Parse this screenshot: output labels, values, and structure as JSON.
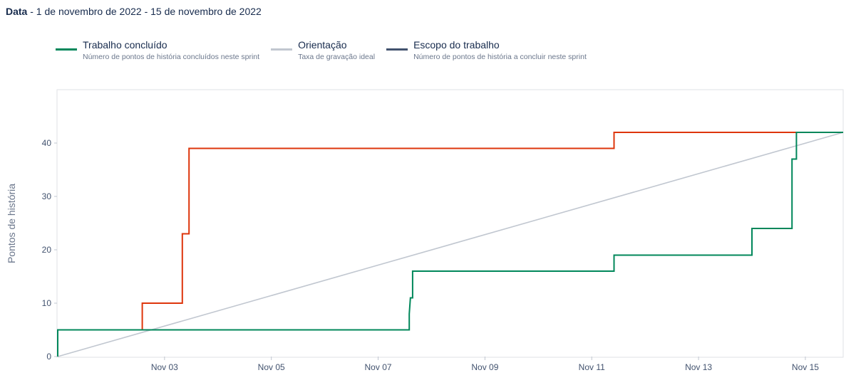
{
  "header": {
    "date_label": "Data",
    "date_range": " - 1 de novembro de 2022 - 15 de novembro de 2022"
  },
  "legend": [
    {
      "title": "Trabalho concluído",
      "description": "Número de pontos de história concluídos neste sprint",
      "color": "#00875a"
    },
    {
      "title": "Orientação",
      "description": "Taxa de gravação ideal",
      "color": "#c1c7d0"
    },
    {
      "title": "Escopo do trabalho",
      "description": "Número de pontos de história a concluir neste sprint",
      "color": "#42526e"
    }
  ],
  "chart_data": {
    "type": "line",
    "ylabel": "Pontos de história",
    "xlabel": "",
    "x_ticks": [
      "Nov 03",
      "Nov 05",
      "Nov 07",
      "Nov 09",
      "Nov 11",
      "Nov 13",
      "Nov 15"
    ],
    "y_ticks": [
      0,
      10,
      20,
      30,
      40
    ],
    "ylim": [
      0,
      50
    ],
    "grid": false,
    "series": [
      {
        "name": "Escopo do trabalho",
        "color": "#de350b",
        "step": true,
        "points": [
          [
            "2022-11-01 00:00",
            5
          ],
          [
            "2022-11-02 14:00",
            5
          ],
          [
            "2022-11-02 14:00",
            10
          ],
          [
            "2022-11-03 08:00",
            10
          ],
          [
            "2022-11-03 08:00",
            23
          ],
          [
            "2022-11-03 11:00",
            23
          ],
          [
            "2022-11-03 11:00",
            39
          ],
          [
            "2022-11-11 10:00",
            39
          ],
          [
            "2022-11-11 10:00",
            42
          ],
          [
            "2022-11-15 17:00",
            42
          ]
        ]
      },
      {
        "name": "Trabalho concluído",
        "color": "#00875a",
        "step": true,
        "points": [
          [
            "2022-11-01 00:00",
            0
          ],
          [
            "2022-11-01 00:00",
            5
          ],
          [
            "2022-11-07 14:00",
            5
          ],
          [
            "2022-11-07 14:00",
            8
          ],
          [
            "2022-11-07 14:30",
            11
          ],
          [
            "2022-11-07 15:30",
            11
          ],
          [
            "2022-11-07 15:30",
            16
          ],
          [
            "2022-11-11 10:00",
            16
          ],
          [
            "2022-11-11 10:00",
            19
          ],
          [
            "2022-11-14 00:00",
            19
          ],
          [
            "2022-11-14 00:00",
            24
          ],
          [
            "2022-11-14 18:00",
            24
          ],
          [
            "2022-11-14 18:00",
            37
          ],
          [
            "2022-11-14 20:00",
            37
          ],
          [
            "2022-11-14 20:00",
            42
          ],
          [
            "2022-11-15 17:00",
            42
          ]
        ]
      },
      {
        "name": "Orientação",
        "color": "#c1c7d0",
        "step": false,
        "points": [
          [
            "2022-11-01 00:00",
            0
          ],
          [
            "2022-11-15 17:00",
            42
          ]
        ]
      }
    ]
  }
}
